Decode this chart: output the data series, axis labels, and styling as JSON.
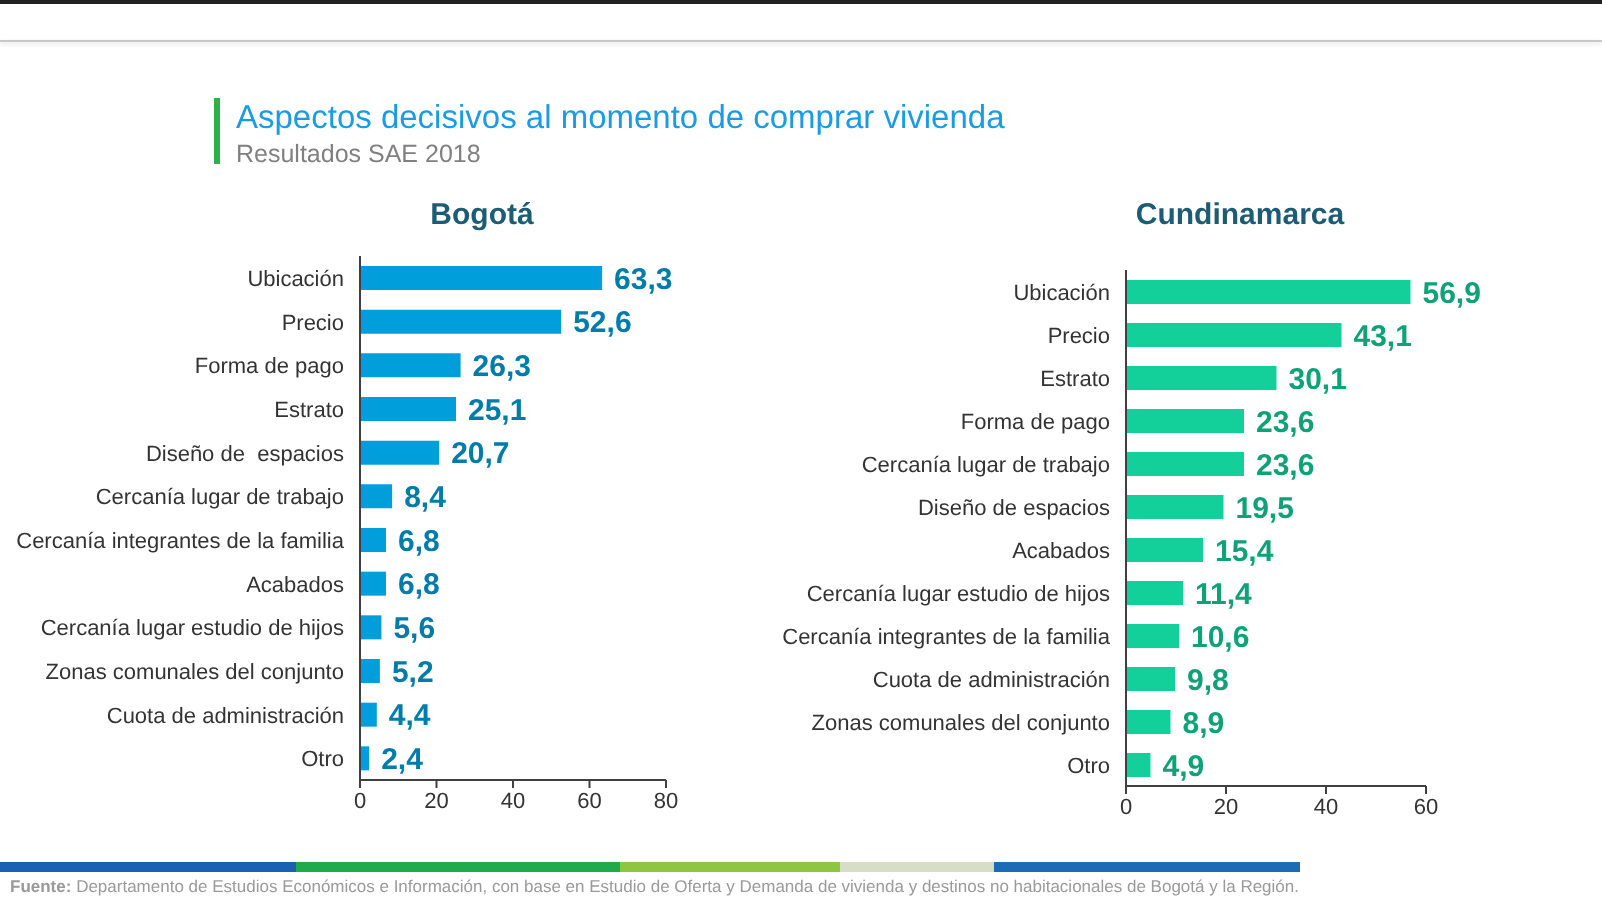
{
  "chart_data": [
    {
      "type": "other",
      "title": "Aspectos decisivos al momento de comprar vivienda",
      "subtitle": "Resultados SAE 2018",
      "annotations": [
        "Fuente: Departamento de Estudios Económicos e Información, con base en Estudio de Oferta y Demanda de vivienda y destinos no habitacionales de Bogotá y la Región."
      ]
    },
    {
      "type": "bar",
      "orientation": "horizontal",
      "title": "Bogotá",
      "categories": [
        "Ubicación",
        "Precio",
        "Forma de pago",
        "Estrato",
        "Diseño de  espacios",
        "Cercanía lugar de trabajo",
        "Cercanía integrantes de la familia",
        "Acabados",
        "Cercanía lugar estudio de hijos",
        "Zonas comunales del conjunto",
        "Cuota de administración",
        "Otro"
      ],
      "values": [
        63.3,
        52.6,
        26.3,
        25.1,
        20.7,
        8.4,
        6.8,
        6.8,
        5.6,
        5.2,
        4.4,
        2.4
      ],
      "value_labels": [
        "63,3",
        "52,6",
        "26,3",
        "25,1",
        "20,7",
        "8,4",
        "6,8",
        "6,8",
        "5,6",
        "5,2",
        "4,4",
        "2,4"
      ],
      "color": "#009fdb",
      "xlim": [
        0,
        80
      ],
      "xticks": [
        0,
        20,
        40,
        60,
        80
      ]
    },
    {
      "type": "bar",
      "orientation": "horizontal",
      "title": "Cundinamarca",
      "categories": [
        "Ubicación",
        "Precio",
        "Estrato",
        "Forma de pago",
        "Cercanía lugar de trabajo",
        "Diseño de espacios",
        "Acabados",
        "Cercanía lugar estudio de hijos",
        "Cercanía integrantes de la familia",
        "Cuota de administración",
        "Zonas comunales del conjunto",
        "Otro"
      ],
      "values": [
        56.9,
        43.1,
        30.1,
        23.6,
        23.6,
        19.5,
        15.4,
        11.4,
        10.6,
        9.8,
        8.9,
        4.9
      ],
      "value_labels": [
        "56,9",
        "43,1",
        "30,1",
        "23,6",
        "23,6",
        "19,5",
        "15,4",
        "11,4",
        "10,6",
        "9,8",
        "8,9",
        "4,9"
      ],
      "color": "#13d09b",
      "xlim": [
        0,
        60
      ],
      "xticks": [
        0,
        20,
        40,
        60
      ]
    }
  ]
}
